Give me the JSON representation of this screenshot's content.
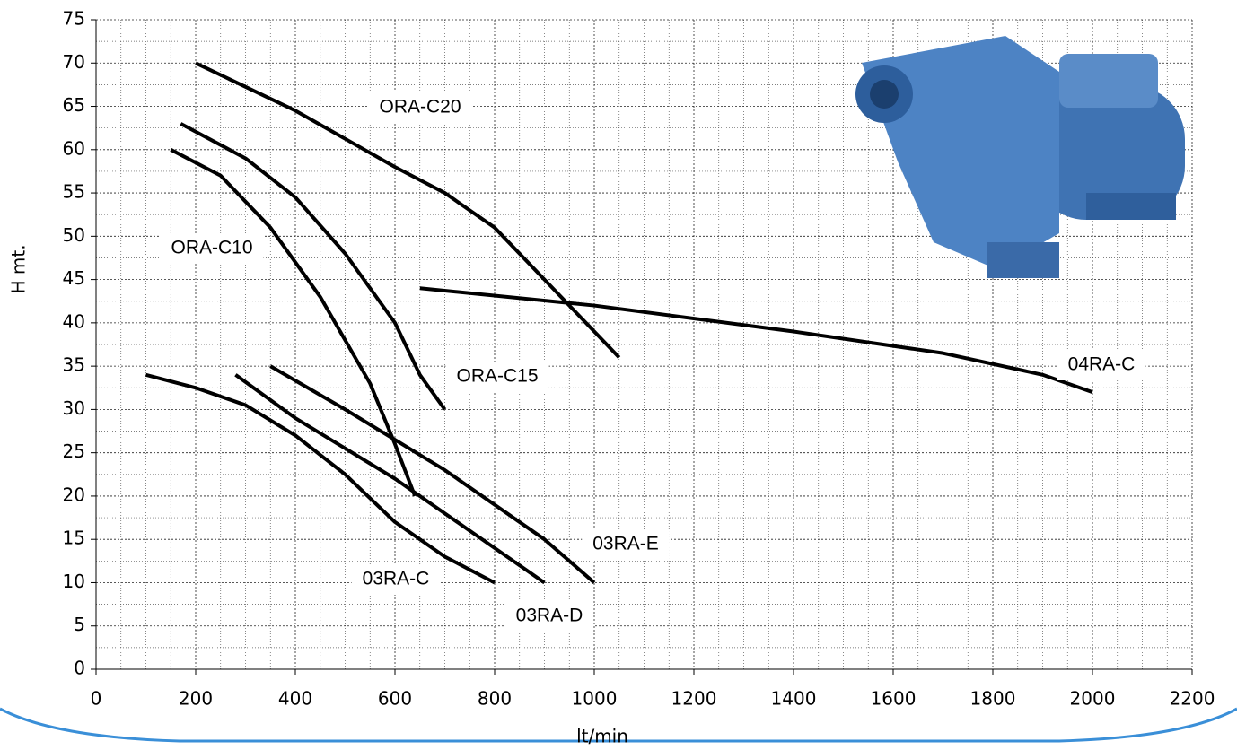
{
  "chart_data": {
    "type": "line",
    "x_label": "lt/min",
    "y_label": "H mt.",
    "xlim": [
      0,
      2200
    ],
    "xticks": [
      0,
      200,
      400,
      600,
      800,
      1000,
      1200,
      1400,
      1600,
      1800,
      2000,
      2200
    ],
    "ylim": [
      0,
      75
    ],
    "yticks": [
      0,
      5,
      10,
      15,
      20,
      25,
      30,
      35,
      40,
      45,
      50,
      55,
      60,
      65,
      70,
      75
    ],
    "grid": true,
    "annotation_color": "#ff0000",
    "series": [
      {
        "name": "ORA-C20",
        "color": "#000000",
        "x": [
          200,
          400,
          600,
          700,
          800,
          900,
          1000,
          1050
        ],
        "values": [
          70,
          64.5,
          58,
          55,
          51,
          45,
          39,
          36
        ]
      },
      {
        "name": "ORA-C15",
        "color": "#000000",
        "x": [
          170,
          300,
          400,
          500,
          600,
          650,
          700
        ],
        "values": [
          63,
          59,
          54.5,
          48,
          40,
          34,
          30
        ]
      },
      {
        "name": "ORA-C10",
        "color": "#000000",
        "x": [
          150,
          250,
          350,
          450,
          550,
          600,
          640
        ],
        "values": [
          60,
          57,
          51,
          43,
          33,
          26,
          20
        ]
      },
      {
        "name": "04RA-C",
        "color": "#000000",
        "x": [
          650,
          1000,
          1400,
          1700,
          1900,
          2000
        ],
        "values": [
          44,
          42,
          39,
          36.5,
          34,
          32
        ]
      },
      {
        "name": "03RA-E",
        "color": "#000000",
        "x": [
          350,
          500,
          700,
          900,
          1000
        ],
        "values": [
          35,
          30,
          23,
          15,
          10
        ]
      },
      {
        "name": "03RA-D",
        "color": "#000000",
        "x": [
          280,
          400,
          600,
          800,
          900
        ],
        "values": [
          34,
          29,
          22,
          14,
          10
        ]
      },
      {
        "name": "03RA-C",
        "color": "#000000",
        "x": [
          100,
          200,
          300,
          400,
          500,
          600,
          700,
          800
        ],
        "values": [
          34,
          32.5,
          30.5,
          27,
          22.5,
          17,
          13,
          10
        ]
      }
    ]
  }
}
